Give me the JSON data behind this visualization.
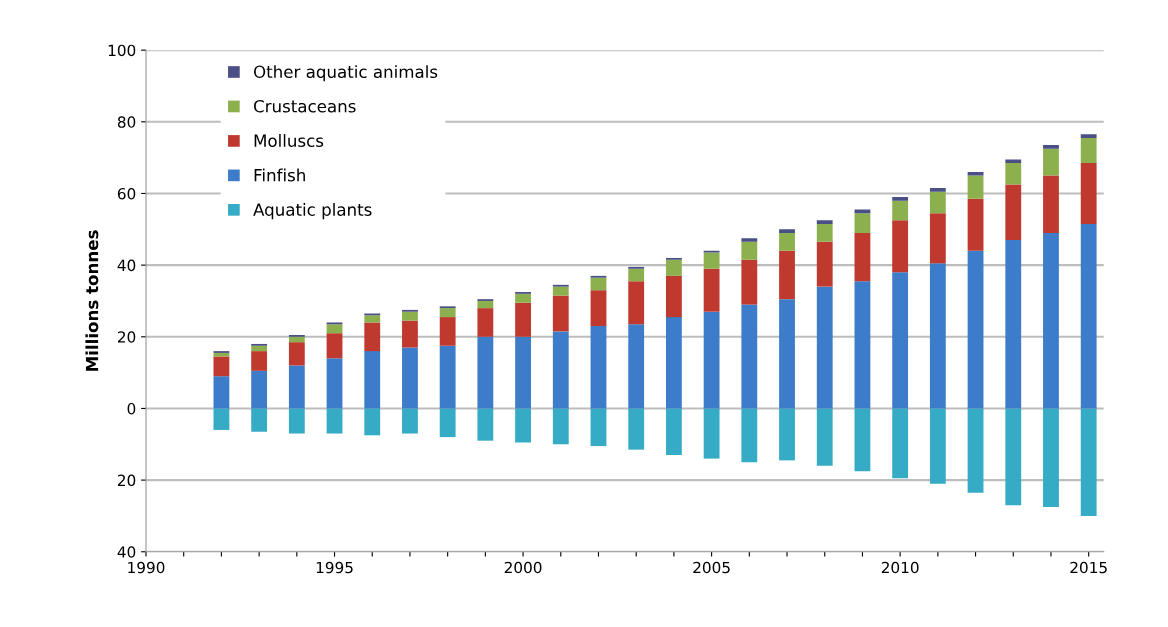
{
  "chart_data": {
    "type": "bar",
    "stacked": true,
    "ylabel": "Millions tonnes",
    "x": [
      1992,
      1993,
      1994,
      1995,
      1996,
      1997,
      1998,
      1999,
      2000,
      2001,
      2002,
      2003,
      2004,
      2005,
      2006,
      2007,
      2008,
      2009,
      2010,
      2011,
      2012,
      2013,
      2014,
      2015
    ],
    "series": [
      {
        "name": "Aquatic plants",
        "color": "#35abc6",
        "values": [
          -6,
          -6.5,
          -7,
          -7,
          -7.5,
          -7,
          -8,
          -9,
          -9.5,
          -10,
          -10.5,
          -11.5,
          -13,
          -14,
          -15,
          -14.5,
          -16,
          -17.5,
          -19.5,
          -21,
          -23.5,
          -27,
          -27.5,
          -30
        ]
      },
      {
        "name": "Finfish",
        "color": "#3d7cc9",
        "values": [
          9,
          10.5,
          12,
          14,
          16,
          17,
          17.5,
          20,
          20,
          21.5,
          23,
          23.5,
          25.5,
          27,
          29,
          30.5,
          34,
          35.5,
          38,
          40.5,
          44,
          47,
          49,
          51.5
        ]
      },
      {
        "name": "Molluscs",
        "color": "#c0392f",
        "values": [
          5.5,
          5.5,
          6.5,
          7,
          8,
          7.5,
          8,
          8,
          9.5,
          10,
          10,
          12,
          11.5,
          12,
          12.5,
          13.5,
          12.5,
          13.5,
          14.5,
          14,
          14.5,
          15.5,
          16,
          17
        ]
      },
      {
        "name": "Crustaceans",
        "color": "#8db04f",
        "values": [
          1,
          1.5,
          1.5,
          2.5,
          2,
          2.5,
          2.5,
          2,
          2.5,
          2.5,
          3.5,
          3.5,
          4.5,
          4.5,
          5,
          5,
          5,
          5.5,
          5.5,
          6,
          6.5,
          6,
          7.5,
          7
        ]
      },
      {
        "name": "Other aquatic animals",
        "color": "#4a4f86",
        "values": [
          0.5,
          0.5,
          0.5,
          0.5,
          0.5,
          0.5,
          0.5,
          0.5,
          0.5,
          0.5,
          0.5,
          0.5,
          0.5,
          0.5,
          1,
          1,
          1,
          1,
          1,
          1,
          1,
          1,
          1,
          1
        ]
      }
    ],
    "xlim": [
      1990,
      2015.4
    ],
    "xticks": [
      1990,
      {
        "value": 1991,
        "label": null
      },
      {
        "value": 1992,
        "label": null
      },
      {
        "value": 1993,
        "label": null
      },
      {
        "value": 1994,
        "label": null
      },
      1995,
      {
        "value": 1996,
        "label": null
      },
      {
        "value": 1997,
        "label": null
      },
      {
        "value": 1998,
        "label": null
      },
      {
        "value": 1999,
        "label": null
      },
      2000,
      {
        "value": 2001,
        "label": null
      },
      {
        "value": 2002,
        "label": null
      },
      {
        "value": 2003,
        "label": null
      },
      {
        "value": 2004,
        "label": null
      },
      2005,
      {
        "value": 2006,
        "label": null
      },
      {
        "value": 2007,
        "label": null
      },
      {
        "value": 2008,
        "label": null
      },
      {
        "value": 2009,
        "label": null
      },
      2010,
      {
        "value": 2011,
        "label": null
      },
      {
        "value": 2012,
        "label": null
      },
      {
        "value": 2013,
        "label": null
      },
      {
        "value": 2014,
        "label": null
      },
      2015
    ],
    "ylim": [
      -40,
      100
    ],
    "yticks": [
      {
        "value": -40,
        "label": "40"
      },
      {
        "value": -20,
        "label": "20"
      },
      0,
      20,
      40,
      60,
      80,
      100
    ],
    "grid": "y",
    "legend": "top left"
  }
}
